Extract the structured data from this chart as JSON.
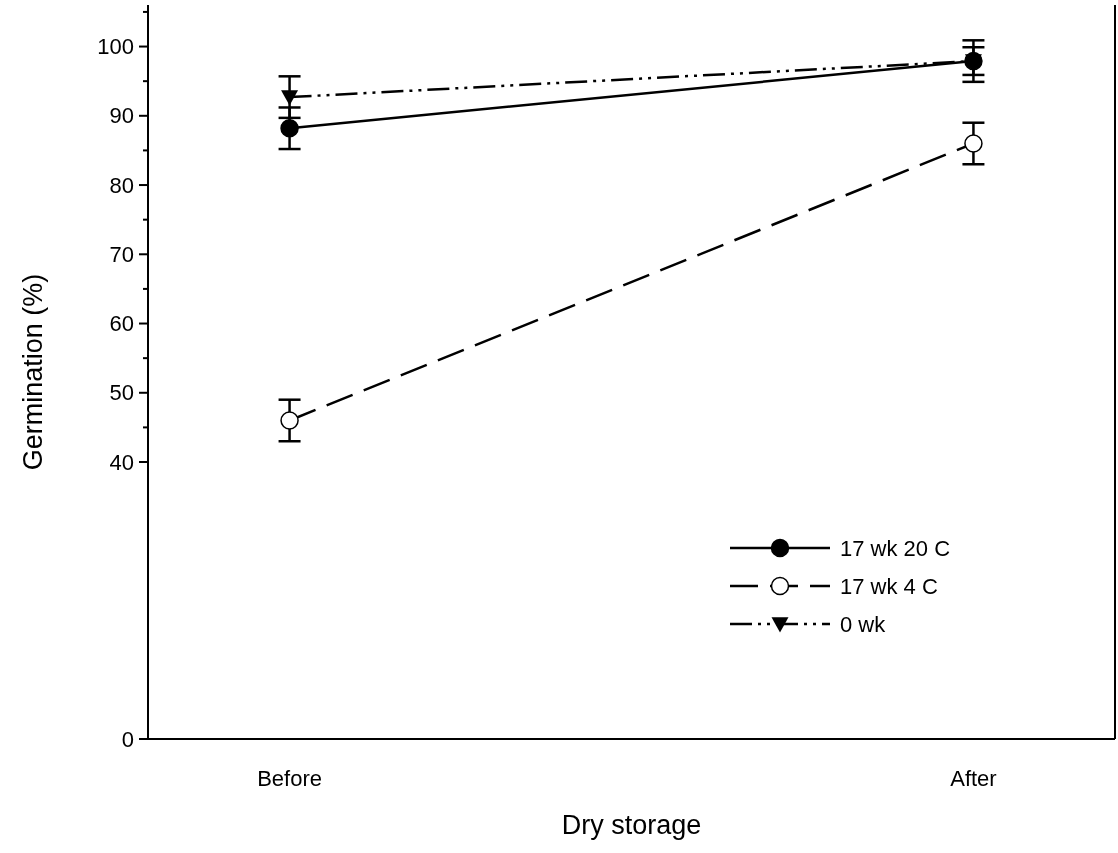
{
  "chart_data": {
    "type": "line",
    "xlabel": "Dry storage",
    "ylabel": "Germination (%)",
    "categories": [
      "Before",
      "After"
    ],
    "ylim": [
      0,
      106
    ],
    "yticks": [
      0,
      40,
      50,
      60,
      70,
      80,
      90,
      100,
      {
        "value": 45,
        "label": null
      },
      {
        "value": 55,
        "label": null
      },
      {
        "value": 65,
        "label": null
      },
      {
        "value": 75,
        "label": null
      },
      {
        "value": 85,
        "label": null
      },
      {
        "value": 95,
        "label": null
      },
      {
        "value": 105,
        "label": null
      }
    ],
    "legend": "bottom right",
    "grid": false,
    "series": [
      {
        "name": "17 wk 20 C",
        "color": "#000000",
        "values": [
          88.2,
          97.9
        ],
        "errors": [
          3,
          3
        ],
        "marker": "circle",
        "line_style": "solid"
      },
      {
        "name": "17 wk 4 C",
        "color": "#000000",
        "values": [
          46,
          86
        ],
        "errors": [
          3,
          3
        ],
        "marker": "circle-open",
        "line_style": "dashed"
      },
      {
        "name": "0 wk",
        "color": "#000000",
        "values": [
          92.7,
          97.9
        ],
        "errors": [
          3,
          2
        ],
        "marker": "triangle",
        "line_style": "dashdotdot"
      }
    ]
  }
}
